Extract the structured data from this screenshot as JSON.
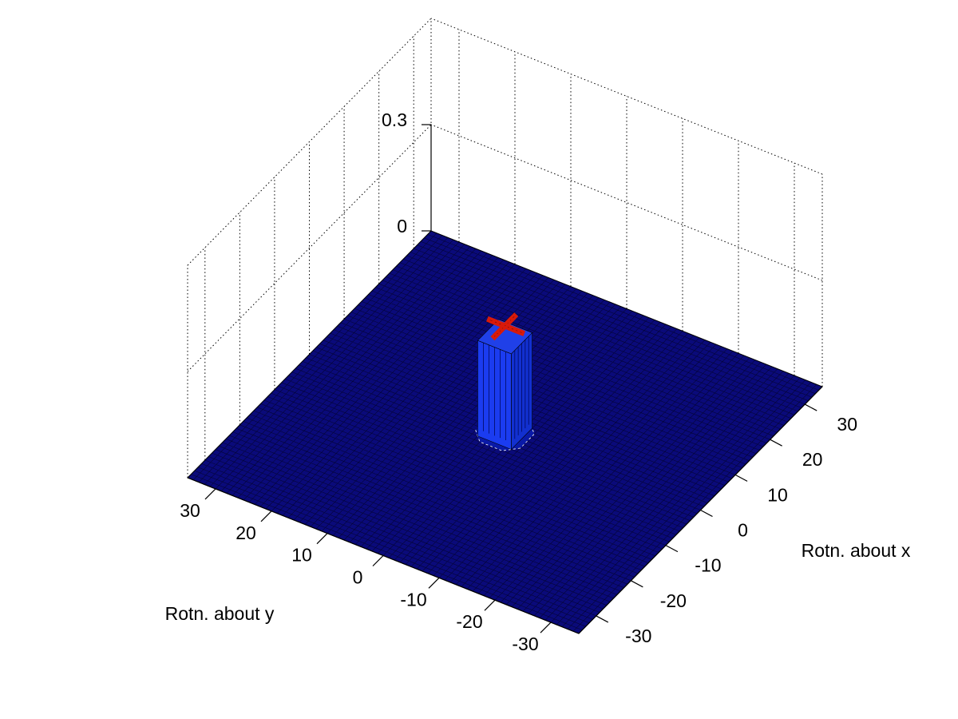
{
  "chart_data": {
    "type": "surface",
    "title": "",
    "xlabel": "Rotn. about y",
    "ylabel": "Rotn. about x",
    "zlabel": "",
    "x_ticks": [
      "30",
      "20",
      "10",
      "0",
      "-10",
      "-20",
      "-30"
    ],
    "y_ticks": [
      "-30",
      "-20",
      "-10",
      "0",
      "10",
      "20",
      "30"
    ],
    "z_ticks": [
      "0",
      "0.3"
    ],
    "xlim": [
      -35,
      35
    ],
    "ylim": [
      -35,
      35
    ],
    "zlim": [
      0,
      0.3
    ],
    "grid": true,
    "surface": {
      "base_value": 0,
      "grid_range": [
        -35,
        35
      ],
      "grid_step": 1,
      "peak": {
        "center": [
          0,
          0
        ],
        "max_value": 0.3,
        "plateau_value": 0.27,
        "half_width": 3
      }
    },
    "colors": {
      "base": "#0a0a7a",
      "mesh": "#000000",
      "peak": "#1a2ee0",
      "peak_top": "#d81a0a"
    }
  }
}
